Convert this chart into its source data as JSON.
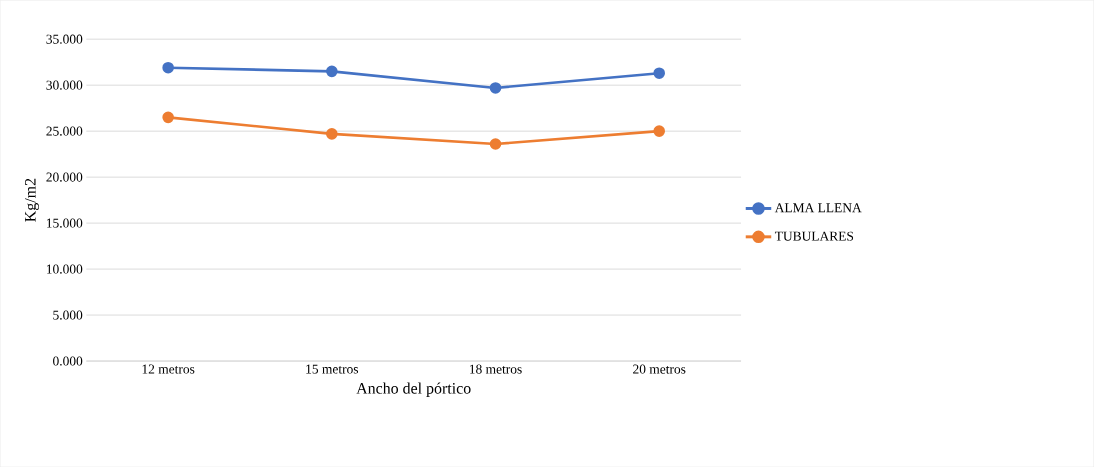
{
  "chart_data": {
    "type": "line",
    "xlabel": "Ancho del pórtico",
    "ylabel": "Kg/m2",
    "categories": [
      "12 metros",
      "15 metros",
      "18 metros",
      "20 metros"
    ],
    "series": [
      {
        "name": "ALMA LLENA",
        "color": "#4472c4",
        "values": [
          31.9,
          31.5,
          29.7,
          31.3
        ]
      },
      {
        "name": "TUBULARES",
        "color": "#ed7d31",
        "values": [
          26.5,
          24.7,
          23.6,
          25.0
        ]
      }
    ],
    "ylim": [
      0,
      35
    ],
    "yticks": [
      {
        "value": 0,
        "label": "0.000"
      },
      {
        "value": 5,
        "label": "5.000"
      },
      {
        "value": 10,
        "label": "10.000"
      },
      {
        "value": 15,
        "label": "15.000"
      },
      {
        "value": 20,
        "label": "20.000"
      },
      {
        "value": 25,
        "label": "25.000"
      },
      {
        "value": 30,
        "label": "30.000"
      },
      {
        "value": 35,
        "label": "35.000"
      }
    ],
    "grid": "y",
    "legend": "right",
    "marker": "circle",
    "line_style": "solid"
  }
}
